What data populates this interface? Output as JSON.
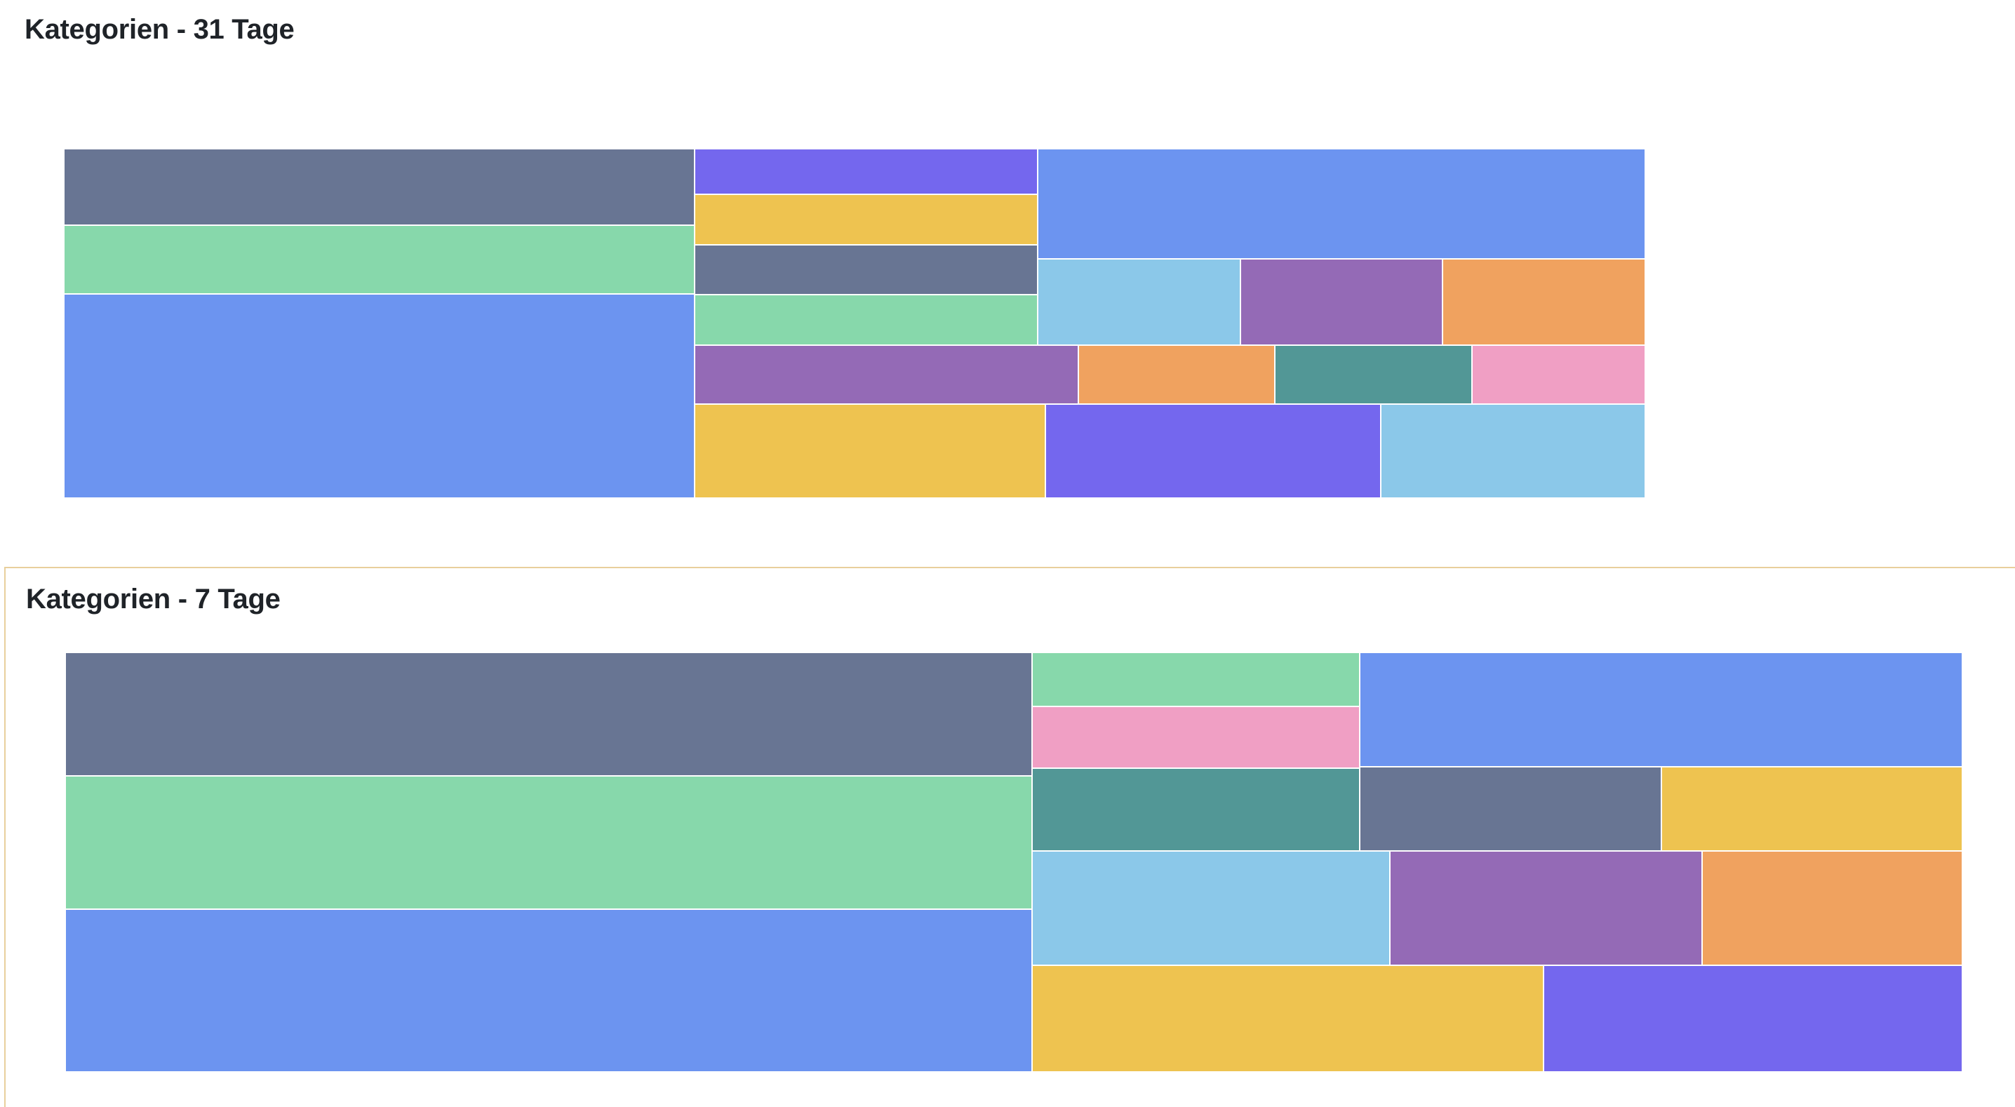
{
  "palette": {
    "slate": "#687593",
    "green": "#87d8ab",
    "blue": "#6c94f0",
    "indigo": "#7467ee",
    "yellow": "#eec350",
    "purple": "#946ab6",
    "lightblue": "#8bc8e9",
    "orange": "#f0a25f",
    "teal": "#529796",
    "pink": "#f09fc4"
  },
  "panels": [
    {
      "title": "Kategorien - 31 Tage",
      "chart_data": {
        "type": "treemap",
        "title": "Kategorien - 31 Tage",
        "tiles": [
          {
            "color": "slate",
            "value": 3.12
          },
          {
            "color": "green",
            "value": 2.77
          },
          {
            "color": "blue",
            "value": 8.31
          },
          {
            "color": "indigo",
            "value": 1.01
          },
          {
            "color": "yellow",
            "value": 1.11
          },
          {
            "color": "slate",
            "value": 1.11
          },
          {
            "color": "green",
            "value": 1.11
          },
          {
            "color": "blue",
            "value": 4.32
          },
          {
            "color": "lightblue",
            "value": 1.12
          },
          {
            "color": "purple",
            "value": 1.12
          },
          {
            "color": "orange",
            "value": 1.12
          },
          {
            "color": "purple",
            "value": 1.46
          },
          {
            "color": "orange",
            "value": 0.75
          },
          {
            "color": "teal",
            "value": 0.75
          },
          {
            "color": "pink",
            "value": 0.66
          },
          {
            "color": "yellow",
            "value": 2.12
          },
          {
            "color": "indigo",
            "value": 2.03
          },
          {
            "color": "lightblue",
            "value": 1.6
          }
        ]
      }
    },
    {
      "title": "Kategorien - 7 Tage",
      "chart_data": {
        "type": "treemap",
        "title": "Kategorien - 7 Tage",
        "tiles": [
          {
            "color": "slate",
            "value": 6.9
          },
          {
            "color": "green",
            "value": 7.47
          },
          {
            "color": "blue",
            "value": 9.11
          },
          {
            "color": "green",
            "value": 1.03
          },
          {
            "color": "pink",
            "value": 1.17
          },
          {
            "color": "teal",
            "value": 1.57
          },
          {
            "color": "blue",
            "value": 3.99
          },
          {
            "color": "slate",
            "value": 1.47
          },
          {
            "color": "yellow",
            "value": 1.47
          },
          {
            "color": "lightblue",
            "value": 2.36
          },
          {
            "color": "purple",
            "value": 2.06
          },
          {
            "color": "orange",
            "value": 1.72
          },
          {
            "color": "yellow",
            "value": 3.16
          },
          {
            "color": "indigo",
            "value": 2.59
          }
        ]
      }
    }
  ]
}
